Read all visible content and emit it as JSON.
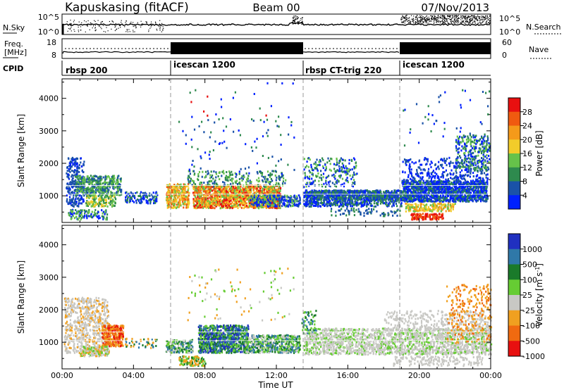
{
  "header": {
    "site": "Kapuskasing (fitACF)",
    "beam": "Beam 00",
    "date": "07/Nov/2013"
  },
  "sky_panel": {
    "left_label": "N.Sky",
    "right_label": "N.Search",
    "left_ticks": [
      "10^5",
      "10^0"
    ],
    "right_ticks": [
      "10^5",
      "10^0"
    ]
  },
  "freq_panel": {
    "left_label_1": "Freq.",
    "left_label_2": "[MHz]",
    "right_label": "Nave",
    "left_ticks": [
      "18",
      "8"
    ],
    "right_ticks": [
      "60",
      "0"
    ]
  },
  "cpid": {
    "label": "CPID",
    "segments": [
      {
        "name": "rbsp 200",
        "start_hour": 0.0
      },
      {
        "name": "icescan 1200",
        "start_hour": 6.0
      },
      {
        "name": "rbsp CT-trig 220",
        "start_hour": 13.5
      },
      {
        "name": "icescan 1200",
        "start_hour": 19.0
      }
    ]
  },
  "axes": {
    "x_ticks": [
      "00:00",
      "04:00",
      "08:00",
      "12:00",
      "16:00",
      "20:00",
      "00:00"
    ],
    "x_label": "Time UT",
    "y_ticks": [
      "1000",
      "2000",
      "3000",
      "4000"
    ],
    "y_label_power": "Slant Range [km]",
    "y_label_velocity": "Slant Range [km]"
  },
  "power_bar": {
    "label": "Power [dB]",
    "ticks": [
      "4",
      "8",
      "12",
      "16",
      "20",
      "24",
      "28"
    ],
    "colors": [
      "#0020ff",
      "#1a52a8",
      "#2e8a4e",
      "#66c24a",
      "#f2cc2a",
      "#f59a1a",
      "#f05a10",
      "#e81010"
    ]
  },
  "velocity_bar": {
    "label": "Velocity [m s",
    "label_sup": "-1",
    "label_end": "]",
    "ticks": [
      "1000",
      "500",
      "100",
      "25",
      "-25",
      "-100",
      "-500",
      "-1000"
    ],
    "colors": [
      "#2030c0",
      "#2f78a8",
      "#1a7a2a",
      "#66cc33",
      "#c8c8c4",
      "#f0a020",
      "#f06a10",
      "#e81010"
    ]
  },
  "chart_data": [
    {
      "type": "heatmap",
      "title": "Power",
      "x_axis": "Time UT (hours)",
      "y_axis": "Slant Range [km]",
      "xlim": [
        0,
        24
      ],
      "ylim": [
        180,
        4600
      ],
      "colorbar": {
        "label": "Power [dB]",
        "range": [
          0,
          32
        ],
        "ticks": [
          4,
          8,
          12,
          16,
          20,
          24,
          28
        ]
      },
      "regions": [
        {
          "t": [
            0.7,
            3.3
          ],
          "range": [
            700,
            1700
          ],
          "level": "12-20 dB"
        },
        {
          "t": [
            3.6,
            5.0
          ],
          "range": [
            800,
            1100
          ],
          "level": "4-12 dB"
        },
        {
          "t": [
            5.8,
            7.0
          ],
          "range": [
            650,
            1350
          ],
          "level": "16-28 dB"
        },
        {
          "t": [
            7.3,
            12.2
          ],
          "range": [
            650,
            1350
          ],
          "level": "20-28 dB"
        },
        {
          "t": [
            13.5,
            19.0
          ],
          "range": [
            800,
            1200
          ],
          "level": "4-12 dB"
        },
        {
          "t": [
            19.0,
            23.8
          ],
          "range": [
            900,
            1500
          ],
          "level": "4-8 dB"
        },
        {
          "t": [
            19.2,
            21.2
          ],
          "range": [
            300,
            700
          ],
          "level": "24-28 dB"
        }
      ]
    },
    {
      "type": "heatmap",
      "title": "Velocity",
      "x_axis": "Time UT (hours)",
      "y_axis": "Slant Range [km]",
      "xlim": [
        0,
        24
      ],
      "ylim": [
        180,
        4600
      ],
      "colorbar": {
        "label": "Velocity [m s-1]",
        "ticks": [
          1000,
          500,
          100,
          25,
          -25,
          -100,
          -500,
          -1000
        ]
      },
      "regions": [
        {
          "t": [
            0.2,
            2.5
          ],
          "range": [
            700,
            2300
          ],
          "velocity": "-25 to 25"
        },
        {
          "t": [
            2.3,
            3.4
          ],
          "range": [
            900,
            1550
          ],
          "velocity": "-500 to -1000"
        },
        {
          "t": [
            7.7,
            10.3
          ],
          "range": [
            700,
            1550
          ],
          "velocity": "100 to 1000"
        },
        {
          "t": [
            13.5,
            24.0
          ],
          "range": [
            600,
            1500
          ],
          "velocity": "-25 to 25"
        },
        {
          "t": [
            21.5,
            24.0
          ],
          "range": [
            1000,
            2800
          ],
          "velocity": "-100 to -500"
        }
      ]
    }
  ]
}
